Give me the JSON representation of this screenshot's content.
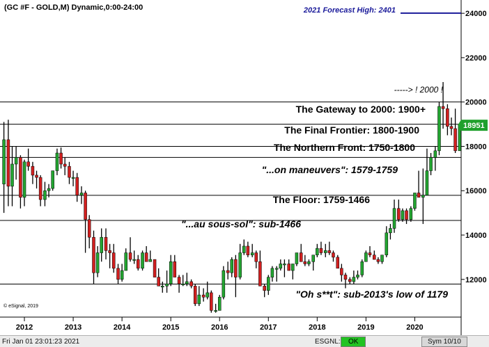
{
  "chart_data": {
    "type": "candlestick",
    "title": "(GC #F - GOLD,M) Dynamic,0:00-24:00",
    "ylim": [
      10300,
      24600
    ],
    "xlim": [
      2011.5,
      2020.95
    ],
    "y_ticks": [
      12000,
      14000,
      16000,
      18000,
      20000,
      22000,
      24000
    ],
    "y_tick_labels": [
      "12000",
      "14000",
      "16000",
      "18000",
      "20000",
      "22000",
      "24000"
    ],
    "x_ticks": [
      2012,
      2013,
      2014,
      2015,
      2016,
      2017,
      2018,
      2019,
      2020
    ],
    "x_tick_labels": [
      "2012",
      "2013",
      "2014",
      "2015",
      "2016",
      "2017",
      "2018",
      "2019",
      "2020"
    ],
    "last_price": 18951,
    "last_price_label": "18951",
    "colors": {
      "up": "#23a531",
      "down": "#d21f1f",
      "wick": "#000000",
      "forecast": "#1a1a9a",
      "price_box": "#1fa02c"
    },
    "forecast": {
      "label": "2021 Forecast High:  2401",
      "value": 24010
    },
    "levels": [
      20000,
      19000,
      18000,
      17500,
      15790,
      14660,
      11790
    ],
    "annotations": [
      {
        "text": "-----> ! 2000 !",
        "style": "italic"
      },
      {
        "text": "The Gateway to 2000:  1900+",
        "style": "bold"
      },
      {
        "text": "The Final Frontier:  1800-1900",
        "style": "bold"
      },
      {
        "text": "The Northern Front:  1750-1800",
        "style": "bold"
      },
      {
        "text": "\"...on maneuvers\":  1579-1759",
        "style": "bold-italic"
      },
      {
        "text": "The Floor:  1759-1466",
        "style": "bold"
      },
      {
        "text": "\"...au sous-sol\":  sub-1466",
        "style": "bold-italic"
      },
      {
        "text": "\"Oh s**t\":  sub-2013's low of 1179",
        "style": "bold-italic"
      }
    ],
    "copyright": "© eSignal, 2019",
    "candles": [
      {
        "x": 2011.58,
        "o": 16300,
        "h": 19100,
        "l": 15000,
        "c": 18300
      },
      {
        "x": 2011.67,
        "o": 18300,
        "h": 19200,
        "l": 15300,
        "c": 16200
      },
      {
        "x": 2011.75,
        "o": 16200,
        "h": 18000,
        "l": 15300,
        "c": 17200
      },
      {
        "x": 2011.83,
        "o": 17200,
        "h": 18000,
        "l": 16500,
        "c": 17500
      },
      {
        "x": 2011.92,
        "o": 17500,
        "h": 17600,
        "l": 15200,
        "c": 15700
      },
      {
        "x": 2012.0,
        "o": 15700,
        "h": 17400,
        "l": 15300,
        "c": 17300
      },
      {
        "x": 2012.08,
        "o": 17300,
        "h": 17900,
        "l": 16900,
        "c": 17100
      },
      {
        "x": 2012.17,
        "o": 17100,
        "h": 17300,
        "l": 16300,
        "c": 16700
      },
      {
        "x": 2012.25,
        "o": 16700,
        "h": 16900,
        "l": 16100,
        "c": 16600
      },
      {
        "x": 2012.33,
        "o": 16600,
        "h": 16700,
        "l": 15300,
        "c": 15600
      },
      {
        "x": 2012.42,
        "o": 15600,
        "h": 16400,
        "l": 15300,
        "c": 16000
      },
      {
        "x": 2012.5,
        "o": 16000,
        "h": 16300,
        "l": 15700,
        "c": 16100
      },
      {
        "x": 2012.58,
        "o": 16100,
        "h": 16900,
        "l": 16000,
        "c": 16900
      },
      {
        "x": 2012.67,
        "o": 16900,
        "h": 17900,
        "l": 16700,
        "c": 17700
      },
      {
        "x": 2012.75,
        "o": 17700,
        "h": 17950,
        "l": 17000,
        "c": 17200
      },
      {
        "x": 2012.83,
        "o": 17200,
        "h": 17500,
        "l": 16700,
        "c": 17100
      },
      {
        "x": 2012.92,
        "o": 17100,
        "h": 17300,
        "l": 16300,
        "c": 16600
      },
      {
        "x": 2013.0,
        "o": 16600,
        "h": 16900,
        "l": 16200,
        "c": 16600
      },
      {
        "x": 2013.08,
        "o": 16600,
        "h": 16800,
        "l": 15500,
        "c": 15800
      },
      {
        "x": 2013.17,
        "o": 15800,
        "h": 16200,
        "l": 15400,
        "c": 15900
      },
      {
        "x": 2013.25,
        "o": 15900,
        "h": 16000,
        "l": 13200,
        "c": 14700
      },
      {
        "x": 2013.33,
        "o": 14700,
        "h": 14900,
        "l": 13400,
        "c": 13900
      },
      {
        "x": 2013.42,
        "o": 13900,
        "h": 14200,
        "l": 11800,
        "c": 12300
      },
      {
        "x": 2013.5,
        "o": 12300,
        "h": 13500,
        "l": 12100,
        "c": 13200
      },
      {
        "x": 2013.58,
        "o": 13200,
        "h": 14300,
        "l": 12800,
        "c": 13900
      },
      {
        "x": 2013.67,
        "o": 13900,
        "h": 14300,
        "l": 12900,
        "c": 13300
      },
      {
        "x": 2013.75,
        "o": 13300,
        "h": 13600,
        "l": 12500,
        "c": 13200
      },
      {
        "x": 2013.83,
        "o": 13200,
        "h": 13600,
        "l": 12300,
        "c": 12500
      },
      {
        "x": 2013.92,
        "o": 12500,
        "h": 12700,
        "l": 11800,
        "c": 12000
      },
      {
        "x": 2014.0,
        "o": 12000,
        "h": 12700,
        "l": 11900,
        "c": 12400
      },
      {
        "x": 2014.08,
        "o": 12400,
        "h": 13400,
        "l": 12400,
        "c": 13200
      },
      {
        "x": 2014.17,
        "o": 13200,
        "h": 13900,
        "l": 12800,
        "c": 12900
      },
      {
        "x": 2014.25,
        "o": 12900,
        "h": 13300,
        "l": 12700,
        "c": 12900
      },
      {
        "x": 2014.33,
        "o": 12900,
        "h": 13100,
        "l": 12400,
        "c": 12500
      },
      {
        "x": 2014.42,
        "o": 12500,
        "h": 13300,
        "l": 12400,
        "c": 13200
      },
      {
        "x": 2014.5,
        "o": 13200,
        "h": 13500,
        "l": 12800,
        "c": 12800
      },
      {
        "x": 2014.58,
        "o": 12800,
        "h": 13300,
        "l": 12800,
        "c": 12900
      },
      {
        "x": 2014.67,
        "o": 12900,
        "h": 12900,
        "l": 12100,
        "c": 12100
      },
      {
        "x": 2014.75,
        "o": 12100,
        "h": 12500,
        "l": 11800,
        "c": 11700
      },
      {
        "x": 2014.83,
        "o": 11700,
        "h": 11900,
        "l": 11400,
        "c": 11700
      },
      {
        "x": 2014.92,
        "o": 11700,
        "h": 12400,
        "l": 11400,
        "c": 11800
      },
      {
        "x": 2015.0,
        "o": 11800,
        "h": 13100,
        "l": 11700,
        "c": 12800
      },
      {
        "x": 2015.08,
        "o": 12800,
        "h": 13100,
        "l": 12100,
        "c": 12100
      },
      {
        "x": 2015.17,
        "o": 12100,
        "h": 12200,
        "l": 11400,
        "c": 11800
      },
      {
        "x": 2015.25,
        "o": 11800,
        "h": 12200,
        "l": 11700,
        "c": 11800
      },
      {
        "x": 2015.33,
        "o": 11800,
        "h": 12300,
        "l": 11700,
        "c": 11900
      },
      {
        "x": 2015.42,
        "o": 11900,
        "h": 12000,
        "l": 11600,
        "c": 11700
      },
      {
        "x": 2015.5,
        "o": 11700,
        "h": 11800,
        "l": 10800,
        "c": 10900
      },
      {
        "x": 2015.58,
        "o": 10900,
        "h": 11700,
        "l": 10800,
        "c": 11300
      },
      {
        "x": 2015.67,
        "o": 11300,
        "h": 11600,
        "l": 11000,
        "c": 11200
      },
      {
        "x": 2015.75,
        "o": 11200,
        "h": 11900,
        "l": 11100,
        "c": 11400
      },
      {
        "x": 2015.83,
        "o": 11400,
        "h": 11500,
        "l": 10500,
        "c": 10600
      },
      {
        "x": 2015.92,
        "o": 10600,
        "h": 10900,
        "l": 10500,
        "c": 10600
      },
      {
        "x": 2016.0,
        "o": 10600,
        "h": 11300,
        "l": 10700,
        "c": 11200
      },
      {
        "x": 2016.08,
        "o": 11200,
        "h": 12600,
        "l": 11100,
        "c": 12400
      },
      {
        "x": 2016.17,
        "o": 12400,
        "h": 12800,
        "l": 12000,
        "c": 12300
      },
      {
        "x": 2016.25,
        "o": 12300,
        "h": 13000,
        "l": 12100,
        "c": 12900
      },
      {
        "x": 2016.33,
        "o": 12900,
        "h": 13100,
        "l": 11200,
        "c": 12100
      },
      {
        "x": 2016.42,
        "o": 12100,
        "h": 13600,
        "l": 12000,
        "c": 13200
      },
      {
        "x": 2016.5,
        "o": 13200,
        "h": 13800,
        "l": 13100,
        "c": 13500
      },
      {
        "x": 2016.58,
        "o": 13500,
        "h": 13700,
        "l": 13000,
        "c": 13100
      },
      {
        "x": 2016.67,
        "o": 13100,
        "h": 13600,
        "l": 13000,
        "c": 13200
      },
      {
        "x": 2016.75,
        "o": 13200,
        "h": 13300,
        "l": 12500,
        "c": 12800
      },
      {
        "x": 2016.83,
        "o": 12800,
        "h": 13300,
        "l": 11700,
        "c": 11700
      },
      {
        "x": 2016.92,
        "o": 11700,
        "h": 11800,
        "l": 11200,
        "c": 11500
      },
      {
        "x": 2017.0,
        "o": 11500,
        "h": 12200,
        "l": 11300,
        "c": 12100
      },
      {
        "x": 2017.08,
        "o": 12100,
        "h": 12600,
        "l": 11900,
        "c": 12500
      },
      {
        "x": 2017.17,
        "o": 12500,
        "h": 12600,
        "l": 11900,
        "c": 12500
      },
      {
        "x": 2017.25,
        "o": 12500,
        "h": 12900,
        "l": 12400,
        "c": 12700
      },
      {
        "x": 2017.33,
        "o": 12700,
        "h": 12900,
        "l": 12100,
        "c": 12700
      },
      {
        "x": 2017.42,
        "o": 12700,
        "h": 12900,
        "l": 12400,
        "c": 12400
      },
      {
        "x": 2017.5,
        "o": 12400,
        "h": 12700,
        "l": 12000,
        "c": 12700
      },
      {
        "x": 2017.58,
        "o": 12700,
        "h": 13100,
        "l": 12600,
        "c": 13200
      },
      {
        "x": 2017.67,
        "o": 13200,
        "h": 13600,
        "l": 12800,
        "c": 12800
      },
      {
        "x": 2017.75,
        "o": 12800,
        "h": 13100,
        "l": 12600,
        "c": 12700
      },
      {
        "x": 2017.83,
        "o": 12700,
        "h": 12900,
        "l": 12600,
        "c": 12800
      },
      {
        "x": 2017.92,
        "o": 12800,
        "h": 13100,
        "l": 12400,
        "c": 13100
      },
      {
        "x": 2018.0,
        "o": 13100,
        "h": 13600,
        "l": 13000,
        "c": 13400
      },
      {
        "x": 2018.08,
        "o": 13400,
        "h": 13700,
        "l": 13100,
        "c": 13200
      },
      {
        "x": 2018.17,
        "o": 13200,
        "h": 13600,
        "l": 13000,
        "c": 13300
      },
      {
        "x": 2018.25,
        "o": 13300,
        "h": 13700,
        "l": 13100,
        "c": 13200
      },
      {
        "x": 2018.33,
        "o": 13200,
        "h": 13300,
        "l": 12800,
        "c": 13000
      },
      {
        "x": 2018.42,
        "o": 13000,
        "h": 13100,
        "l": 12500,
        "c": 12500
      },
      {
        "x": 2018.5,
        "o": 12500,
        "h": 12700,
        "l": 11900,
        "c": 12200
      },
      {
        "x": 2018.58,
        "o": 12200,
        "h": 12300,
        "l": 11600,
        "c": 12000
      },
      {
        "x": 2018.67,
        "o": 12000,
        "h": 12100,
        "l": 11800,
        "c": 11900
      },
      {
        "x": 2018.75,
        "o": 11900,
        "h": 12400,
        "l": 11800,
        "c": 12100
      },
      {
        "x": 2018.83,
        "o": 12100,
        "h": 12400,
        "l": 12000,
        "c": 12200
      },
      {
        "x": 2018.92,
        "o": 12200,
        "h": 12900,
        "l": 12100,
        "c": 12800
      },
      {
        "x": 2019.0,
        "o": 12800,
        "h": 13300,
        "l": 12800,
        "c": 13200
      },
      {
        "x": 2019.08,
        "o": 13200,
        "h": 13500,
        "l": 13000,
        "c": 13100
      },
      {
        "x": 2019.17,
        "o": 13100,
        "h": 13300,
        "l": 12900,
        "c": 12900
      },
      {
        "x": 2019.25,
        "o": 12900,
        "h": 13000,
        "l": 12700,
        "c": 12800
      },
      {
        "x": 2019.33,
        "o": 12800,
        "h": 13100,
        "l": 12700,
        "c": 13100
      },
      {
        "x": 2019.42,
        "o": 13100,
        "h": 14400,
        "l": 13000,
        "c": 14100
      },
      {
        "x": 2019.5,
        "o": 14100,
        "h": 14500,
        "l": 13800,
        "c": 14300
      },
      {
        "x": 2019.58,
        "o": 14300,
        "h": 15600,
        "l": 14100,
        "c": 15200
      },
      {
        "x": 2019.67,
        "o": 15200,
        "h": 15600,
        "l": 14600,
        "c": 14700
      },
      {
        "x": 2019.75,
        "o": 14700,
        "h": 15200,
        "l": 14600,
        "c": 15100
      },
      {
        "x": 2019.83,
        "o": 15100,
        "h": 15200,
        "l": 14500,
        "c": 14700
      },
      {
        "x": 2019.92,
        "o": 14700,
        "h": 15300,
        "l": 14600,
        "c": 15200
      },
      {
        "x": 2020.0,
        "o": 15200,
        "h": 15900,
        "l": 15100,
        "c": 15900
      },
      {
        "x": 2020.08,
        "o": 15900,
        "h": 16900,
        "l": 15700,
        "c": 15700
      },
      {
        "x": 2020.17,
        "o": 15700,
        "h": 17000,
        "l": 14500,
        "c": 15800
      },
      {
        "x": 2020.25,
        "o": 15800,
        "h": 17900,
        "l": 15800,
        "c": 16900
      },
      {
        "x": 2020.33,
        "o": 16900,
        "h": 17700,
        "l": 16700,
        "c": 17500
      },
      {
        "x": 2020.42,
        "o": 17500,
        "h": 18000,
        "l": 16900,
        "c": 17800
      },
      {
        "x": 2020.5,
        "o": 17800,
        "h": 20000,
        "l": 17600,
        "c": 19800
      },
      {
        "x": 2020.58,
        "o": 19800,
        "h": 20900,
        "l": 18800,
        "c": 19700
      },
      {
        "x": 2020.67,
        "o": 19700,
        "h": 19900,
        "l": 18500,
        "c": 18900
      },
      {
        "x": 2020.75,
        "o": 18900,
        "h": 19300,
        "l": 18500,
        "c": 18800
      },
      {
        "x": 2020.83,
        "o": 18800,
        "h": 19700,
        "l": 17700,
        "c": 17800
      },
      {
        "x": 2020.92,
        "o": 17800,
        "h": 19000,
        "l": 17800,
        "c": 18950
      }
    ]
  },
  "status_bar": {
    "datetime": "Fri Jan 01 23:01:23 2021",
    "feed": "ESGNL:",
    "status": "OK",
    "symbol": "Sym 10/10"
  }
}
